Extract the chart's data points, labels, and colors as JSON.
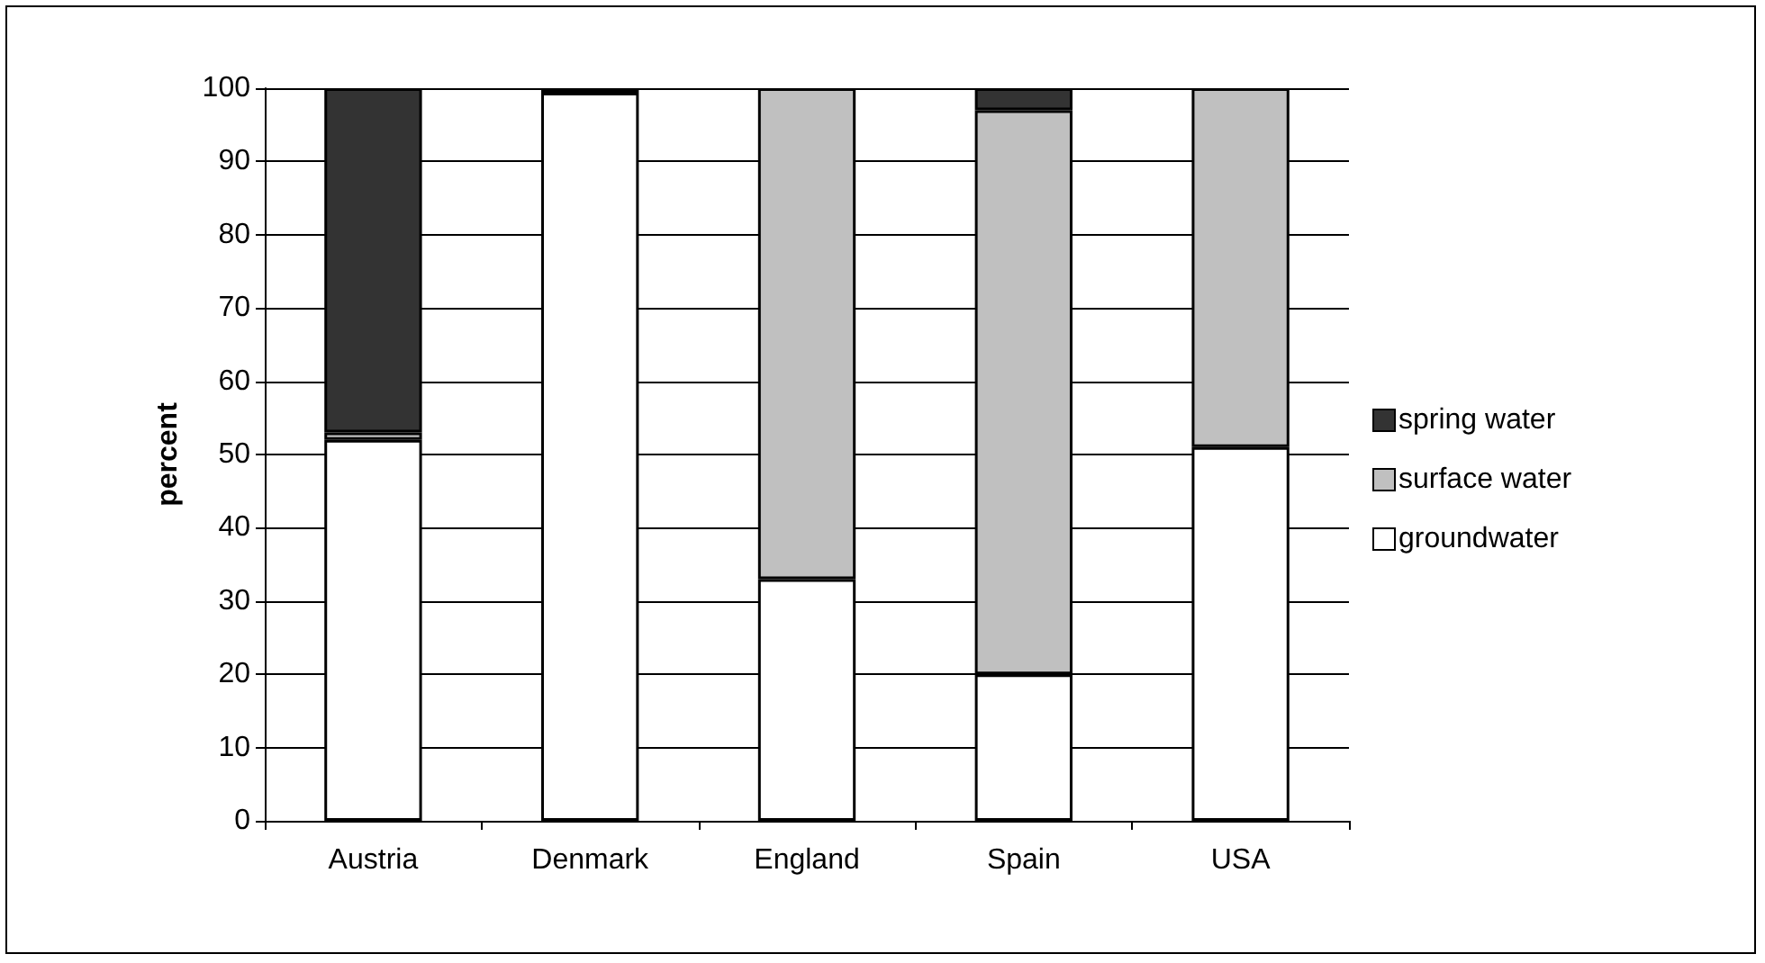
{
  "chart_data": {
    "type": "bar",
    "stacked": true,
    "ylabel": "percent",
    "categories": [
      "Austria",
      "Denmark",
      "England",
      "Spain",
      "USA"
    ],
    "series": [
      {
        "name": "groundwater",
        "color": "#ffffff",
        "values": [
          52,
          99.4,
          33,
          20,
          51
        ]
      },
      {
        "name": "surface water",
        "color": "#c0c0c0",
        "values": [
          1,
          0,
          67,
          77,
          49
        ]
      },
      {
        "name": "spring water",
        "color": "#333333",
        "values": [
          47,
          0.6,
          0,
          3,
          0
        ]
      }
    ],
    "ylim": [
      0,
      100
    ],
    "yticks": [
      0,
      10,
      20,
      30,
      40,
      50,
      60,
      70,
      80,
      90,
      100
    ],
    "grid": "y",
    "legend": "right"
  }
}
